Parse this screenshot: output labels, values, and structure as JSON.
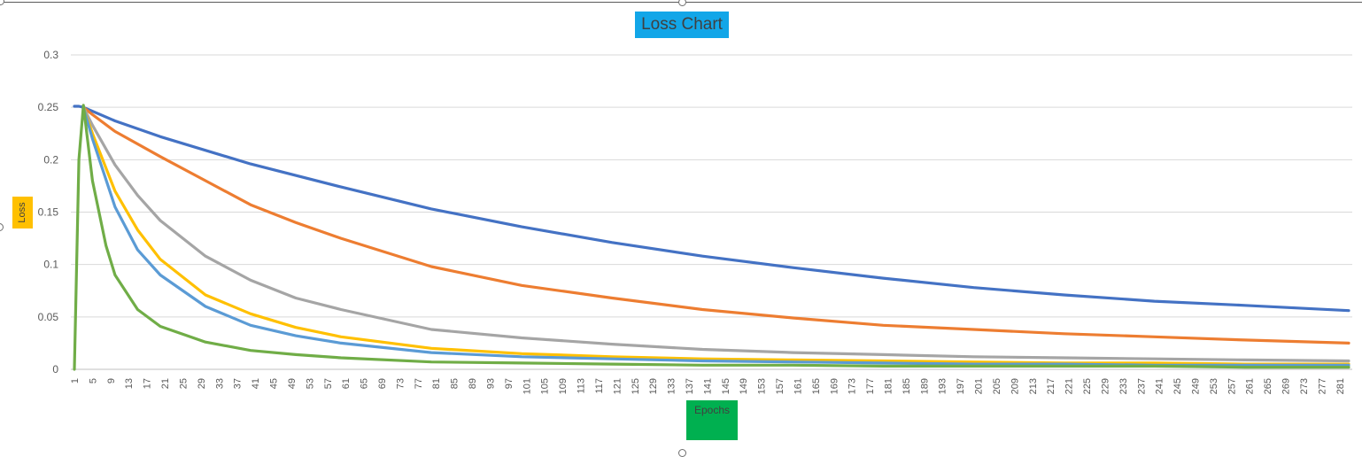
{
  "chart_data": {
    "type": "line",
    "title": "Loss Chart",
    "xlabel": "Epochs",
    "ylabel": "Loss",
    "ylim": [
      0,
      0.3
    ],
    "yticks": [
      "0",
      "0.05",
      "0.1",
      "0.15",
      "0.2",
      "0.25",
      "0.3"
    ],
    "x_range": [
      1,
      283
    ],
    "x_tick_start": 1,
    "x_tick_step": 4,
    "x_tick_count": 71,
    "grid": true,
    "legend": "none",
    "series": [
      {
        "color": "#4472c4",
        "x": [
          1,
          2,
          3,
          10,
          20,
          40,
          60,
          80,
          100,
          120,
          140,
          160,
          180,
          200,
          220,
          240,
          260,
          283
        ],
        "values": [
          0.251,
          0.251,
          0.25,
          0.237,
          0.222,
          0.196,
          0.174,
          0.153,
          0.136,
          0.121,
          0.108,
          0.097,
          0.087,
          0.078,
          0.071,
          0.065,
          0.061,
          0.056
        ]
      },
      {
        "color": "#ed7d31",
        "x": [
          3,
          5,
          10,
          20,
          30,
          40,
          50,
          60,
          80,
          100,
          120,
          140,
          160,
          180,
          200,
          220,
          240,
          260,
          283
        ],
        "values": [
          0.25,
          0.243,
          0.227,
          0.203,
          0.18,
          0.157,
          0.14,
          0.125,
          0.098,
          0.08,
          0.068,
          0.057,
          0.049,
          0.042,
          0.038,
          0.034,
          0.031,
          0.028,
          0.025
        ]
      },
      {
        "color": "#a5a5a5",
        "x": [
          3,
          5,
          10,
          15,
          20,
          30,
          40,
          50,
          60,
          80,
          100,
          120,
          140,
          160,
          180,
          200,
          220,
          240,
          260,
          283
        ],
        "values": [
          0.25,
          0.233,
          0.195,
          0.166,
          0.142,
          0.108,
          0.085,
          0.068,
          0.057,
          0.038,
          0.03,
          0.024,
          0.019,
          0.016,
          0.014,
          0.012,
          0.011,
          0.01,
          0.009,
          0.008
        ]
      },
      {
        "color": "#ffc000",
        "x": [
          3,
          5,
          10,
          15,
          20,
          30,
          40,
          50,
          60,
          80,
          100,
          120,
          140,
          160,
          180,
          200,
          220,
          240,
          260,
          283
        ],
        "values": [
          0.25,
          0.225,
          0.17,
          0.133,
          0.105,
          0.071,
          0.053,
          0.04,
          0.031,
          0.02,
          0.015,
          0.012,
          0.01,
          0.009,
          0.008,
          0.007,
          0.006,
          0.006,
          0.005,
          0.005
        ]
      },
      {
        "color": "#5b9bd5",
        "x": [
          3,
          5,
          10,
          15,
          20,
          30,
          40,
          50,
          60,
          80,
          100,
          120,
          140,
          160,
          180,
          200,
          220,
          240,
          260,
          283
        ],
        "values": [
          0.25,
          0.22,
          0.155,
          0.114,
          0.09,
          0.06,
          0.042,
          0.032,
          0.025,
          0.016,
          0.012,
          0.01,
          0.008,
          0.007,
          0.006,
          0.005,
          0.005,
          0.004,
          0.004,
          0.004
        ]
      },
      {
        "color": "#70ad47",
        "x": [
          1,
          2,
          3,
          5,
          8,
          10,
          15,
          20,
          30,
          40,
          50,
          60,
          80,
          100,
          120,
          140,
          160,
          180,
          200,
          220,
          240,
          260,
          283
        ],
        "values": [
          0,
          0.2,
          0.252,
          0.18,
          0.118,
          0.09,
          0.057,
          0.041,
          0.026,
          0.018,
          0.014,
          0.011,
          0.007,
          0.006,
          0.005,
          0.004,
          0.004,
          0.003,
          0.003,
          0.003,
          0.003,
          0.002,
          0.002
        ]
      }
    ]
  }
}
